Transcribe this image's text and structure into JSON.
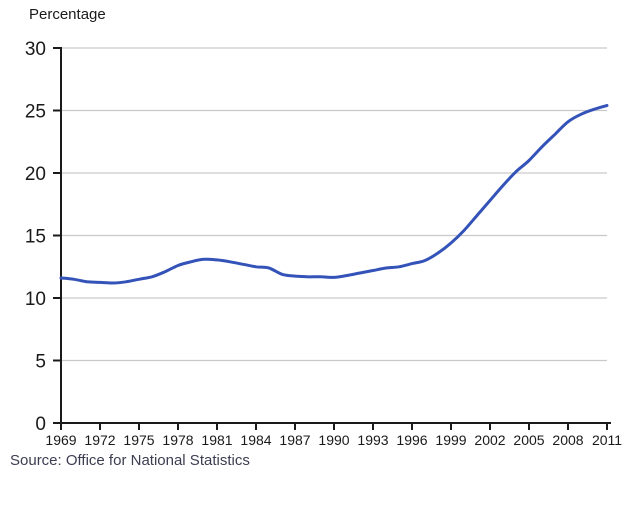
{
  "page": {
    "axis_title": "Percentage",
    "source_note": "Source: Office for National Statistics"
  },
  "colors": {
    "line": "#3453b8",
    "grid": "#c9c9c9",
    "axis": "#1a1a1a",
    "tick_text": "#1a1a1a",
    "source_text": "#3d3d52"
  },
  "chart_data": {
    "type": "line",
    "title": "Percentage",
    "xlabel": "",
    "ylabel": "Percentage",
    "ylim": [
      0,
      30
    ],
    "xlim": [
      1969,
      2011
    ],
    "y_ticks": [
      0,
      5,
      10,
      15,
      20,
      25,
      30
    ],
    "x_tick_labels": [
      "1969",
      "1972",
      "1975",
      "1978",
      "1981",
      "1984",
      "1987",
      "1990",
      "1993",
      "1996",
      "1999",
      "2002",
      "2005",
      "2008",
      "2011"
    ],
    "x_tick_years": [
      1969,
      1972,
      1975,
      1978,
      1981,
      1984,
      1987,
      1990,
      1993,
      1996,
      1999,
      2002,
      2005,
      2008,
      2011
    ],
    "grid": "horizontal gridlines at every 5 units, light gray",
    "legend_position": "none",
    "source": "Source: Office for National Statistics",
    "series": [
      {
        "name": "Percentage",
        "color": "#3453b8",
        "x": [
          1969,
          1970,
          1971,
          1972,
          1973,
          1974,
          1975,
          1976,
          1977,
          1978,
          1979,
          1980,
          1981,
          1982,
          1983,
          1984,
          1985,
          1986,
          1987,
          1988,
          1989,
          1990,
          1991,
          1992,
          1993,
          1994,
          1995,
          1996,
          1997,
          1998,
          1999,
          2000,
          2001,
          2002,
          2003,
          2004,
          2005,
          2006,
          2007,
          2008,
          2009,
          2010,
          2011
        ],
        "values": [
          11.6,
          11.5,
          11.3,
          11.25,
          11.2,
          11.3,
          11.5,
          11.7,
          12.1,
          12.6,
          12.9,
          13.1,
          13.05,
          12.9,
          12.7,
          12.5,
          12.4,
          11.9,
          11.75,
          11.7,
          11.7,
          11.65,
          11.8,
          12.0,
          12.2,
          12.4,
          12.5,
          12.75,
          13.0,
          13.6,
          14.4,
          15.4,
          16.6,
          17.8,
          19.0,
          20.1,
          21.0,
          22.1,
          23.1,
          24.1,
          24.7,
          25.1,
          25.4
        ]
      }
    ]
  }
}
